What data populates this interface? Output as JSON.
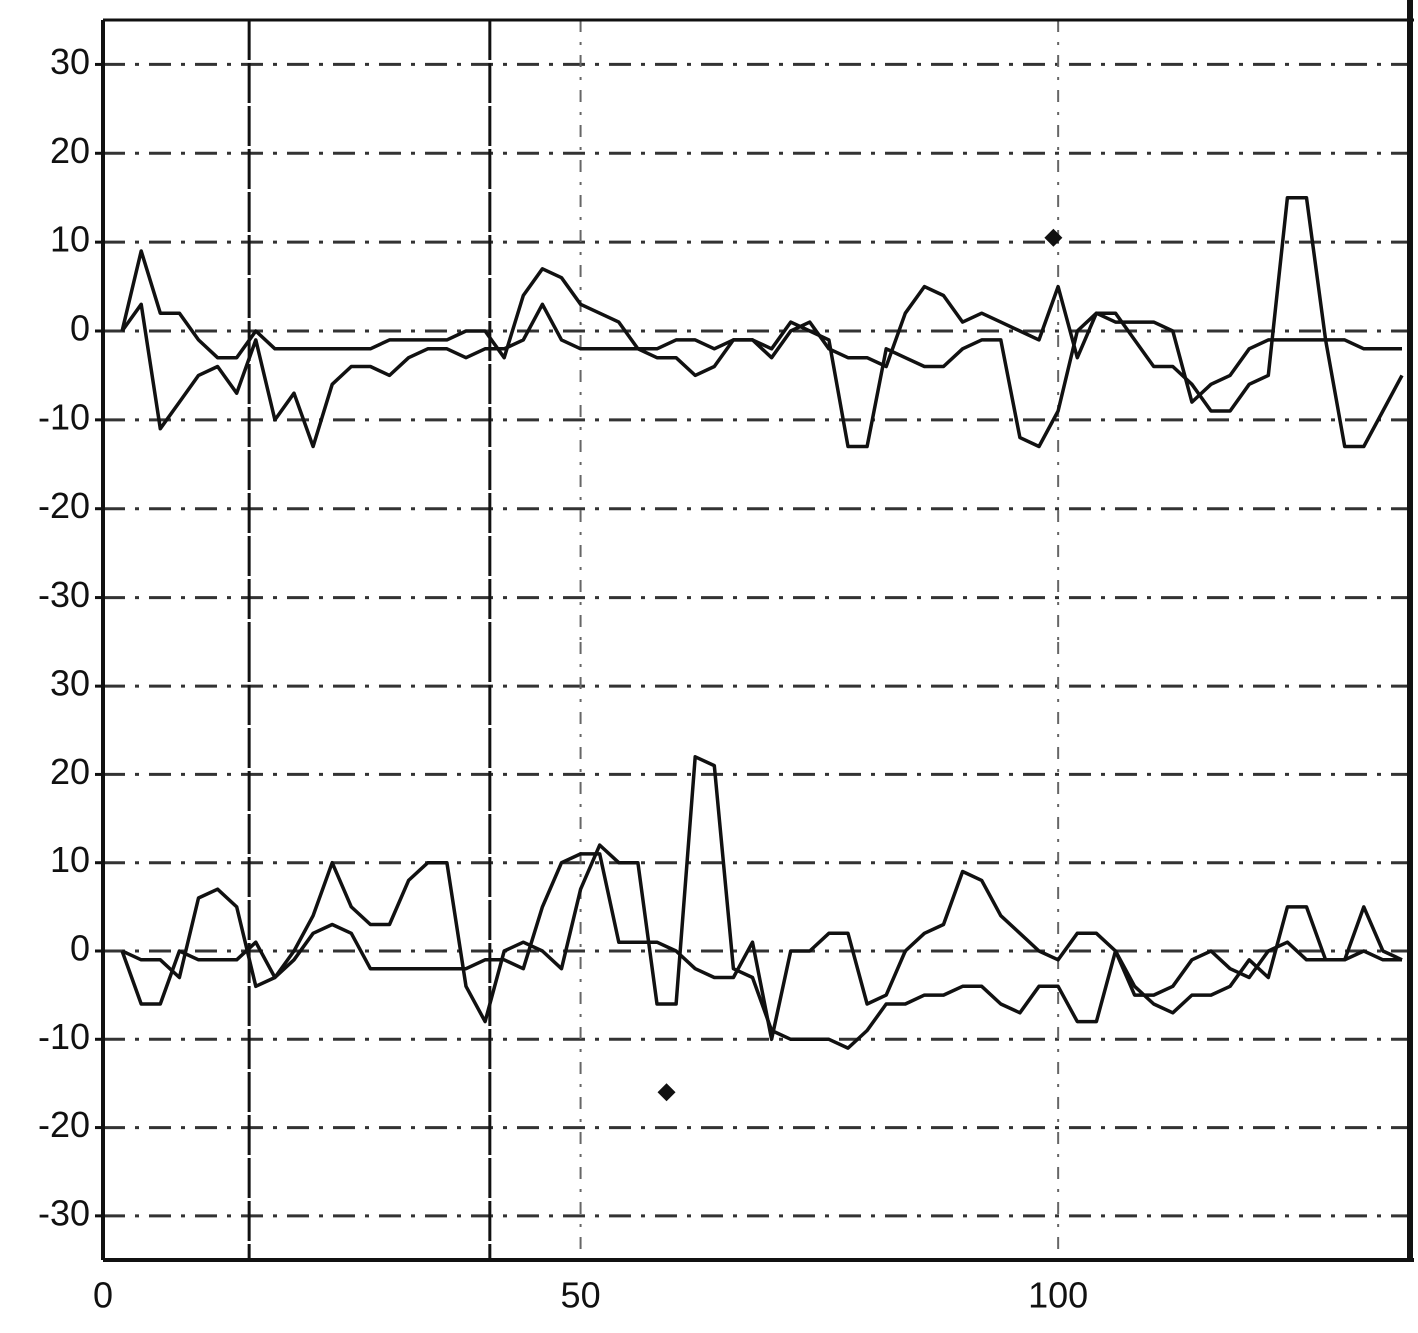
{
  "chart_data": [
    {
      "type": "line",
      "x": [
        2,
        4,
        6,
        8,
        10,
        12,
        14,
        16,
        18,
        20,
        22,
        24,
        26,
        28,
        30,
        32,
        34,
        36,
        38,
        40,
        42,
        44,
        46,
        48,
        50,
        52,
        54,
        56,
        58,
        60,
        62,
        64,
        66,
        68,
        70,
        72,
        74,
        76,
        78,
        80,
        82,
        84,
        86,
        88,
        90,
        92,
        94,
        96,
        98,
        100,
        102,
        104,
        106,
        108,
        110,
        112,
        114,
        116,
        118,
        120,
        122,
        124,
        126,
        128,
        130,
        132,
        134,
        136
      ],
      "series": [
        {
          "color": "#111111",
          "values": [
            0,
            9,
            2,
            2,
            -1,
            -3,
            -3,
            0,
            -2,
            -2,
            -2,
            -2,
            -2,
            -2,
            -1,
            -1,
            -1,
            -1,
            0,
            0,
            -3,
            4,
            7,
            6,
            3,
            2,
            1,
            -2,
            -3,
            -3,
            -5,
            -4,
            -1,
            -1,
            -3,
            0,
            1,
            -2,
            -3,
            -3,
            -4,
            2,
            5,
            4,
            1,
            2,
            1,
            0,
            -1,
            5,
            -3,
            2,
            2,
            -1,
            -4,
            -4,
            -6,
            -9,
            -9,
            -6,
            -5,
            15,
            15,
            -1,
            -1,
            -2,
            -2,
            -2
          ]
        },
        {
          "color": "#111111",
          "values": [
            0,
            3,
            -11,
            -8,
            -5,
            -4,
            -7,
            -1,
            -10,
            -7,
            -13,
            -6,
            -4,
            -4,
            -5,
            -3,
            -2,
            -2,
            -3,
            -2,
            -2,
            -1,
            3,
            -1,
            -2,
            -2,
            -2,
            -2,
            -2,
            -1,
            -1,
            -2,
            -1,
            -1,
            -2,
            1,
            0,
            -1,
            -13,
            -13,
            -2,
            -3,
            -4,
            -4,
            -2,
            -1,
            -1,
            -12,
            -13,
            -9,
            0,
            2,
            1,
            1,
            1,
            0,
            -8,
            -6,
            -5,
            -2,
            -1,
            -1,
            -1,
            -1,
            -13,
            -13,
            -9,
            -5
          ]
        }
      ],
      "markers": [
        {
          "x": 99.5,
          "y": 10.5
        }
      ],
      "vlines": [
        15.3,
        40.5
      ],
      "xlim": [
        0,
        136
      ],
      "ylim": [
        -35,
        35
      ],
      "yticks": [
        -30,
        -20,
        -10,
        0,
        10,
        20,
        30
      ],
      "grid": true
    },
    {
      "type": "line",
      "x": [
        2,
        4,
        6,
        8,
        10,
        12,
        14,
        16,
        18,
        20,
        22,
        24,
        26,
        28,
        30,
        32,
        34,
        36,
        38,
        40,
        42,
        44,
        46,
        48,
        50,
        52,
        54,
        56,
        58,
        60,
        62,
        64,
        66,
        68,
        70,
        72,
        74,
        76,
        78,
        80,
        82,
        84,
        86,
        88,
        90,
        92,
        94,
        96,
        98,
        100,
        102,
        104,
        106,
        108,
        110,
        112,
        114,
        116,
        118,
        120,
        122,
        124,
        126,
        128,
        130,
        132,
        134,
        136
      ],
      "series": [
        {
          "color": "#111111",
          "values": [
            0,
            -6,
            -6,
            0,
            -1,
            -1,
            -1,
            1,
            -3,
            0,
            4,
            10,
            5,
            3,
            3,
            8,
            10,
            10,
            -4,
            -8,
            0,
            1,
            0,
            -2,
            7,
            12,
            10,
            10,
            -6,
            -6,
            22,
            21,
            -2,
            -3,
            -9,
            -10,
            -10,
            -10,
            -11,
            -9,
            -6,
            -6,
            -5,
            -5,
            -4,
            -4,
            -6,
            -7,
            -4,
            -4,
            -8,
            -8,
            0,
            -4,
            -6,
            -7,
            -5,
            -5,
            -4,
            -1,
            -3,
            5,
            5,
            -1,
            -1,
            5,
            0,
            -1
          ]
        },
        {
          "color": "#111111",
          "values": [
            0,
            -1,
            -1,
            -3,
            6,
            7,
            5,
            -4,
            -3,
            -1,
            2,
            3,
            2,
            -2,
            -2,
            -2,
            -2,
            -2,
            -2,
            -1,
            -1,
            -2,
            5,
            10,
            11,
            11,
            1,
            1,
            1,
            0,
            -2,
            -3,
            -3,
            1,
            -10,
            0,
            0,
            2,
            2,
            -6,
            -5,
            0,
            2,
            3,
            9,
            8,
            4,
            2,
            0,
            -1,
            2,
            2,
            0,
            -5,
            -5,
            -4,
            -1,
            0,
            -2,
            -3,
            0,
            1,
            -1,
            -1,
            -1,
            0,
            -1,
            -1
          ]
        }
      ],
      "markers": [
        {
          "x": 59,
          "y": -16
        }
      ],
      "vlines": [
        15.3,
        40.5
      ],
      "xlim": [
        0,
        136
      ],
      "ylim": [
        -35,
        35
      ],
      "xticks": [
        0,
        50,
        100
      ],
      "yticks": [
        -30,
        -20,
        -10,
        0,
        10,
        20,
        30
      ],
      "grid": true
    }
  ]
}
